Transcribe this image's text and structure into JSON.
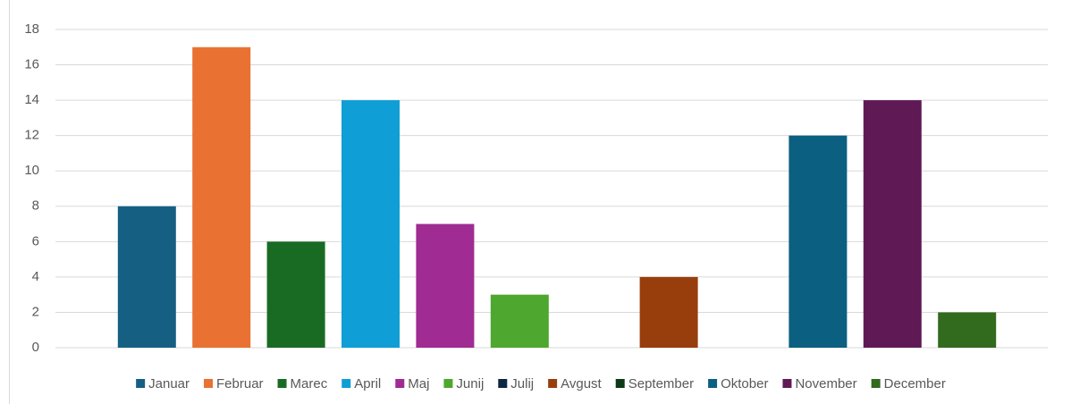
{
  "chart_data": {
    "type": "bar",
    "series": [
      {
        "name": "Januar",
        "color": "#156082",
        "values": [
          8
        ]
      },
      {
        "name": "Februar",
        "color": "#e97132",
        "values": [
          17
        ]
      },
      {
        "name": "Marec",
        "color": "#196b24",
        "values": [
          6
        ]
      },
      {
        "name": "April",
        "color": "#0f9ed5",
        "values": [
          14
        ]
      },
      {
        "name": "Maj",
        "color": "#a02b93",
        "values": [
          7
        ]
      },
      {
        "name": "Junij",
        "color": "#4ea72e",
        "values": [
          3
        ]
      },
      {
        "name": "Julij",
        "color": "#0e2841",
        "values": [
          0
        ]
      },
      {
        "name": "Avgust",
        "color": "#983e0d",
        "values": [
          4
        ]
      },
      {
        "name": "September",
        "color": "#0c3a14",
        "values": [
          0
        ]
      },
      {
        "name": "Oktober",
        "color": "#0b5f80",
        "values": [
          12
        ]
      },
      {
        "name": "November",
        "color": "#5f1a56",
        "values": [
          14
        ]
      },
      {
        "name": "December",
        "color": "#326a1e",
        "values": [
          2
        ]
      }
    ],
    "ylim": [
      0,
      18
    ],
    "yticks": [
      0,
      2,
      4,
      6,
      8,
      10,
      12,
      14,
      16,
      18
    ],
    "grid": true,
    "legend": "bottom"
  }
}
